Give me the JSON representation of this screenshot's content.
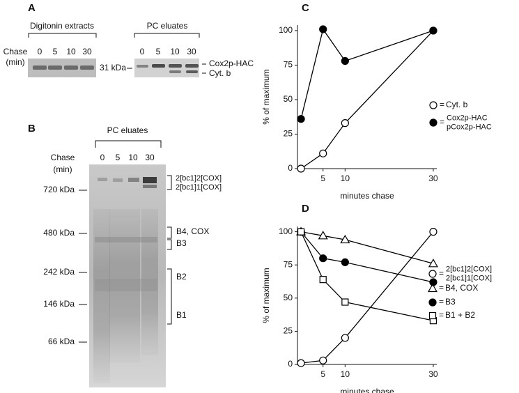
{
  "gel_a": {
    "label": "A",
    "groups": [
      {
        "title": "Digitonin extracts",
        "lanes": [
          "0",
          "5",
          "10",
          "30"
        ]
      },
      {
        "title": "PC eluates",
        "lanes": [
          "0",
          "5",
          "10",
          "30"
        ]
      }
    ],
    "chase_label": [
      "Chase",
      "(min)"
    ],
    "marker": "31 kDa",
    "bands": [
      "Cox2p-HAC",
      "Cyt. b"
    ]
  },
  "gel_b": {
    "label": "B",
    "title": "PC eluates",
    "chase_label": [
      "Chase",
      "(min)"
    ],
    "lanes": [
      "0",
      "5",
      "10",
      "30"
    ],
    "markers": [
      "720 kDa",
      "480 kDa",
      "242 kDa",
      "146 kDa",
      "66 kDa"
    ],
    "bands": [
      "2[bc1]2[COX]",
      "2[bc1]1[COX]",
      "B4, COX",
      "B3",
      "B2",
      "B1"
    ]
  },
  "chart_data": [
    {
      "type": "line",
      "panel_label": "C",
      "x_label": "minutes chase",
      "y_label": "% of maximum",
      "legend_separator": "=",
      "x": [
        0,
        5,
        10,
        30
      ],
      "xlim": [
        -0.8,
        30.8
      ],
      "xticks": [
        5,
        10,
        30
      ],
      "ylim": [
        0,
        104
      ],
      "yticks": [
        0,
        25,
        50,
        75,
        100
      ],
      "series": [
        {
          "name": [
            "Cyt. b"
          ],
          "color": "#000000",
          "marker": "circle",
          "filled": false,
          "values": [
            0,
            11,
            33,
            100
          ]
        },
        {
          "name": [
            "Cox2p-HAC",
            "pCox2p-HAC"
          ],
          "color": "#000000",
          "marker": "circle",
          "filled": true,
          "values": [
            36,
            101,
            78,
            100
          ]
        }
      ]
    },
    {
      "type": "line",
      "panel_label": "D",
      "x_label": "minutes chase",
      "y_label": "% of maximum",
      "legend_separator": "=",
      "x": [
        0,
        5,
        10,
        30
      ],
      "xlim": [
        -0.8,
        30.8
      ],
      "xticks": [
        5,
        10,
        30
      ],
      "ylim": [
        0,
        104
      ],
      "yticks": [
        0,
        25,
        50,
        75,
        100
      ],
      "series": [
        {
          "name": [
            "2[bc1]2[COX]",
            "2[bc1]1[COX]"
          ],
          "color": "#000000",
          "marker": "circle",
          "filled": false,
          "values": [
            1,
            3,
            20,
            100
          ]
        },
        {
          "name": [
            "B4, COX"
          ],
          "color": "#000000",
          "marker": "triangle",
          "filled": false,
          "values": [
            100,
            97,
            94,
            76
          ]
        },
        {
          "name": [
            "B3"
          ],
          "color": "#000000",
          "marker": "circle",
          "filled": true,
          "values": [
            100,
            80,
            77,
            62
          ]
        },
        {
          "name": [
            "B1 + B2"
          ],
          "color": "#000000",
          "marker": "square",
          "filled": false,
          "values": [
            100,
            64,
            47,
            33
          ]
        }
      ]
    }
  ]
}
